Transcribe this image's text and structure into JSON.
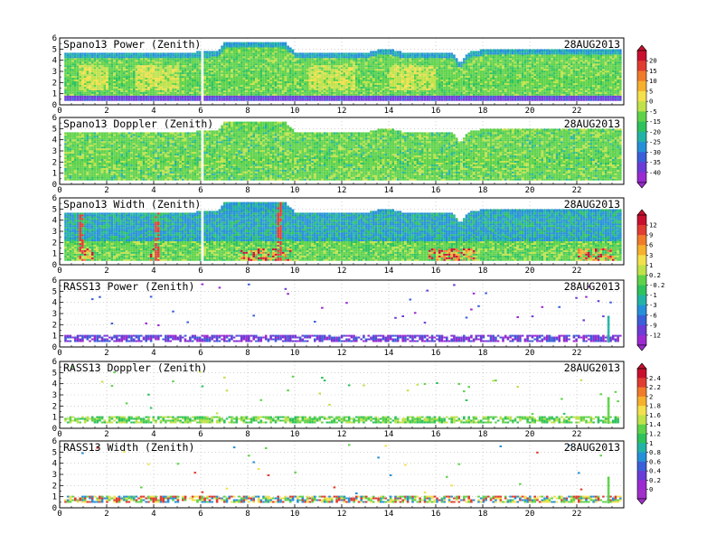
{
  "figure": {
    "date": "28AUG2013",
    "x_ticks": [
      "0",
      "2",
      "4",
      "6",
      "8",
      "10",
      "12",
      "14",
      "16",
      "18",
      "20",
      "22"
    ],
    "y_ticks": [
      "0",
      "1",
      "2",
      "3",
      "4",
      "5",
      "6"
    ]
  },
  "colorbars": [
    {
      "name": "power-doppler-scale",
      "labels": [
        "20",
        "15",
        "10",
        "5",
        "0",
        "-5",
        "-15",
        "-20",
        "-25",
        "-30",
        "-35",
        "-40"
      ],
      "colors": [
        "#c8102e",
        "#e03c31",
        "#f07b2b",
        "#f6b02d",
        "#f3e04c",
        "#bfe24a",
        "#5fd24a",
        "#2ec25d",
        "#22b3a6",
        "#2590d8",
        "#3b5fd8",
        "#6b3cd6",
        "#9b2bd0"
      ]
    },
    {
      "name": "spano-width-rass-power-scale",
      "labels": [
        "12",
        "9",
        "6",
        "3",
        "1",
        "0.2",
        "-0.2",
        "-1",
        "-3",
        "-6",
        "-9",
        "-12"
      ],
      "colors": [
        "#c8102e",
        "#e03c31",
        "#f07b2b",
        "#f6b02d",
        "#f3e04c",
        "#bfe24a",
        "#5fd24a",
        "#2ec25d",
        "#22b3a6",
        "#2590d8",
        "#3b5fd8",
        "#6b3cd6",
        "#9b2bd0"
      ]
    },
    {
      "name": "rass-doppler-width-scale",
      "labels": [
        "2.4",
        "2.2",
        "2",
        "1.8",
        "1.6",
        "1.4",
        "1.2",
        "1",
        "0.8",
        "0.6",
        "0.4",
        "0.2",
        "0"
      ],
      "colors": [
        "#c8102e",
        "#e03c31",
        "#f07b2b",
        "#f6b02d",
        "#f3e04c",
        "#bfe24a",
        "#5fd24a",
        "#2ec25d",
        "#22b3a6",
        "#2590d8",
        "#3b5fd8",
        "#6b3cd6",
        "#9b2bd0",
        "#a030c8"
      ]
    }
  ],
  "chart_data": [
    {
      "type": "heatmap",
      "title": "Spano13 Power (Zenith)",
      "date": "28AUG2013",
      "xlim": [
        0,
        24
      ],
      "ylim": [
        0,
        6
      ],
      "fill": "dense",
      "colorbar": 0,
      "top_profile": [
        [
          0,
          4.6
        ],
        [
          1.5,
          4.6
        ],
        [
          3.5,
          4.6
        ],
        [
          6.7,
          4.7
        ],
        [
          7,
          5.6
        ],
        [
          9.5,
          5.6
        ],
        [
          10,
          4.6
        ],
        [
          13,
          4.6
        ],
        [
          13.8,
          5.0
        ],
        [
          14.6,
          4.6
        ],
        [
          16.7,
          4.6
        ],
        [
          17.0,
          3.6
        ],
        [
          17.3,
          4.6
        ],
        [
          18,
          4.9
        ],
        [
          24,
          4.9
        ]
      ],
      "notes": "green background; yellow/orange patches 1-3.5 km; purple band near 0.5 km"
    },
    {
      "type": "heatmap",
      "title": "Spano13 Doppler (Zenith)",
      "date": "28AUG2013",
      "xlim": [
        0,
        24
      ],
      "ylim": [
        0,
        6
      ],
      "fill": "dense",
      "colorbar": 0,
      "top_profile": [
        [
          0,
          4.6
        ],
        [
          1.5,
          4.6
        ],
        [
          3.5,
          4.6
        ],
        [
          6.7,
          4.7
        ],
        [
          7,
          5.6
        ],
        [
          9.5,
          5.6
        ],
        [
          10,
          4.6
        ],
        [
          13,
          4.6
        ],
        [
          13.8,
          5.0
        ],
        [
          14.6,
          4.6
        ],
        [
          16.7,
          4.6
        ],
        [
          17.0,
          3.6
        ],
        [
          17.3,
          4.6
        ],
        [
          18,
          4.9
        ],
        [
          24,
          4.9
        ]
      ],
      "notes": "mostly green with light-green streaks"
    },
    {
      "type": "heatmap",
      "title": "Spano13 Width (Zenith)",
      "date": "28AUG2013",
      "xlim": [
        0,
        24
      ],
      "ylim": [
        0,
        6
      ],
      "fill": "dense",
      "colorbar": 1,
      "top_profile": [
        [
          0,
          4.6
        ],
        [
          1.5,
          4.6
        ],
        [
          3.5,
          4.6
        ],
        [
          6.7,
          4.7
        ],
        [
          7,
          5.6
        ],
        [
          9.5,
          5.6
        ],
        [
          10,
          4.6
        ],
        [
          13,
          4.6
        ],
        [
          13.8,
          5.0
        ],
        [
          14.6,
          4.6
        ],
        [
          16.7,
          4.6
        ],
        [
          17.0,
          3.6
        ],
        [
          17.3,
          4.6
        ],
        [
          18,
          4.9
        ],
        [
          24,
          4.9
        ]
      ],
      "notes": "blue upper region, green lower region, red/orange bursts near 1 km"
    },
    {
      "type": "heatmap",
      "title": "RASS13 Power (Zenith)",
      "date": "28AUG2013",
      "xlim": [
        0,
        24
      ],
      "ylim": [
        0,
        6
      ],
      "fill": "sparse",
      "colorbar": 1,
      "notes": "purple band 0.4-1.2 km; scattered purple dots above"
    },
    {
      "type": "heatmap",
      "title": "RASS13 Doppler (Zenith)",
      "date": "28AUG2013",
      "xlim": [
        0,
        24
      ],
      "ylim": [
        0,
        6
      ],
      "fill": "sparse",
      "colorbar": 2,
      "notes": "green band 0.4-1.0 km; scattered green dots above"
    },
    {
      "type": "heatmap",
      "title": "RASS13 Width (Zenith)",
      "date": "28AUG2013",
      "xlim": [
        0,
        24
      ],
      "ylim": [
        0,
        6
      ],
      "fill": "sparse",
      "colorbar": 2,
      "notes": "multicolor band 0.4-1.0 km; scattered dots above"
    }
  ]
}
